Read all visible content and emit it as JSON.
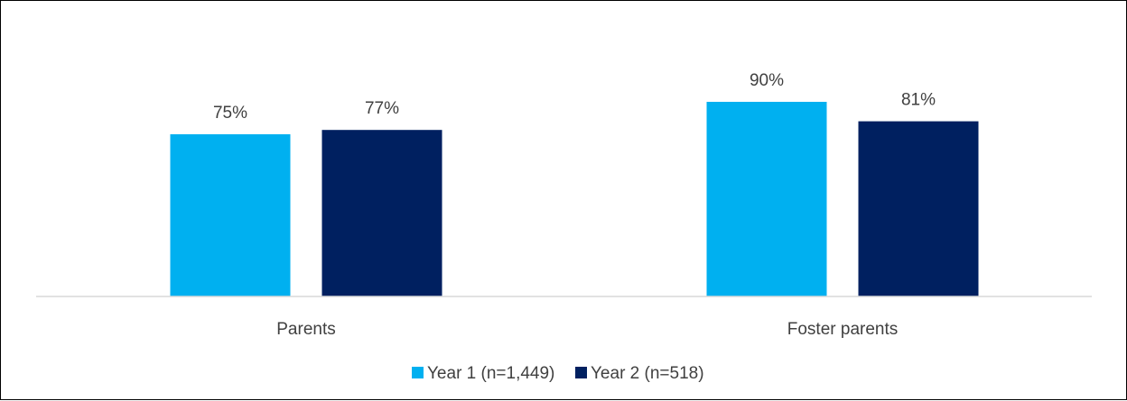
{
  "chart_data": {
    "type": "bar",
    "categories": [
      "Parents",
      "Foster parents"
    ],
    "series": [
      {
        "name": "Year 1 (n=1,449)",
        "values": [
          75,
          90
        ],
        "color": "#00B0F0"
      },
      {
        "name": "Year 2 (n=518)",
        "values": [
          77,
          81
        ],
        "color": "#002060"
      }
    ],
    "data_labels": [
      [
        "75%",
        "90%"
      ],
      [
        "77%",
        "81%"
      ]
    ],
    "ylim": [
      0,
      100
    ],
    "grid": false,
    "legend_position": "bottom",
    "axis_color": "#D9D9D9"
  }
}
